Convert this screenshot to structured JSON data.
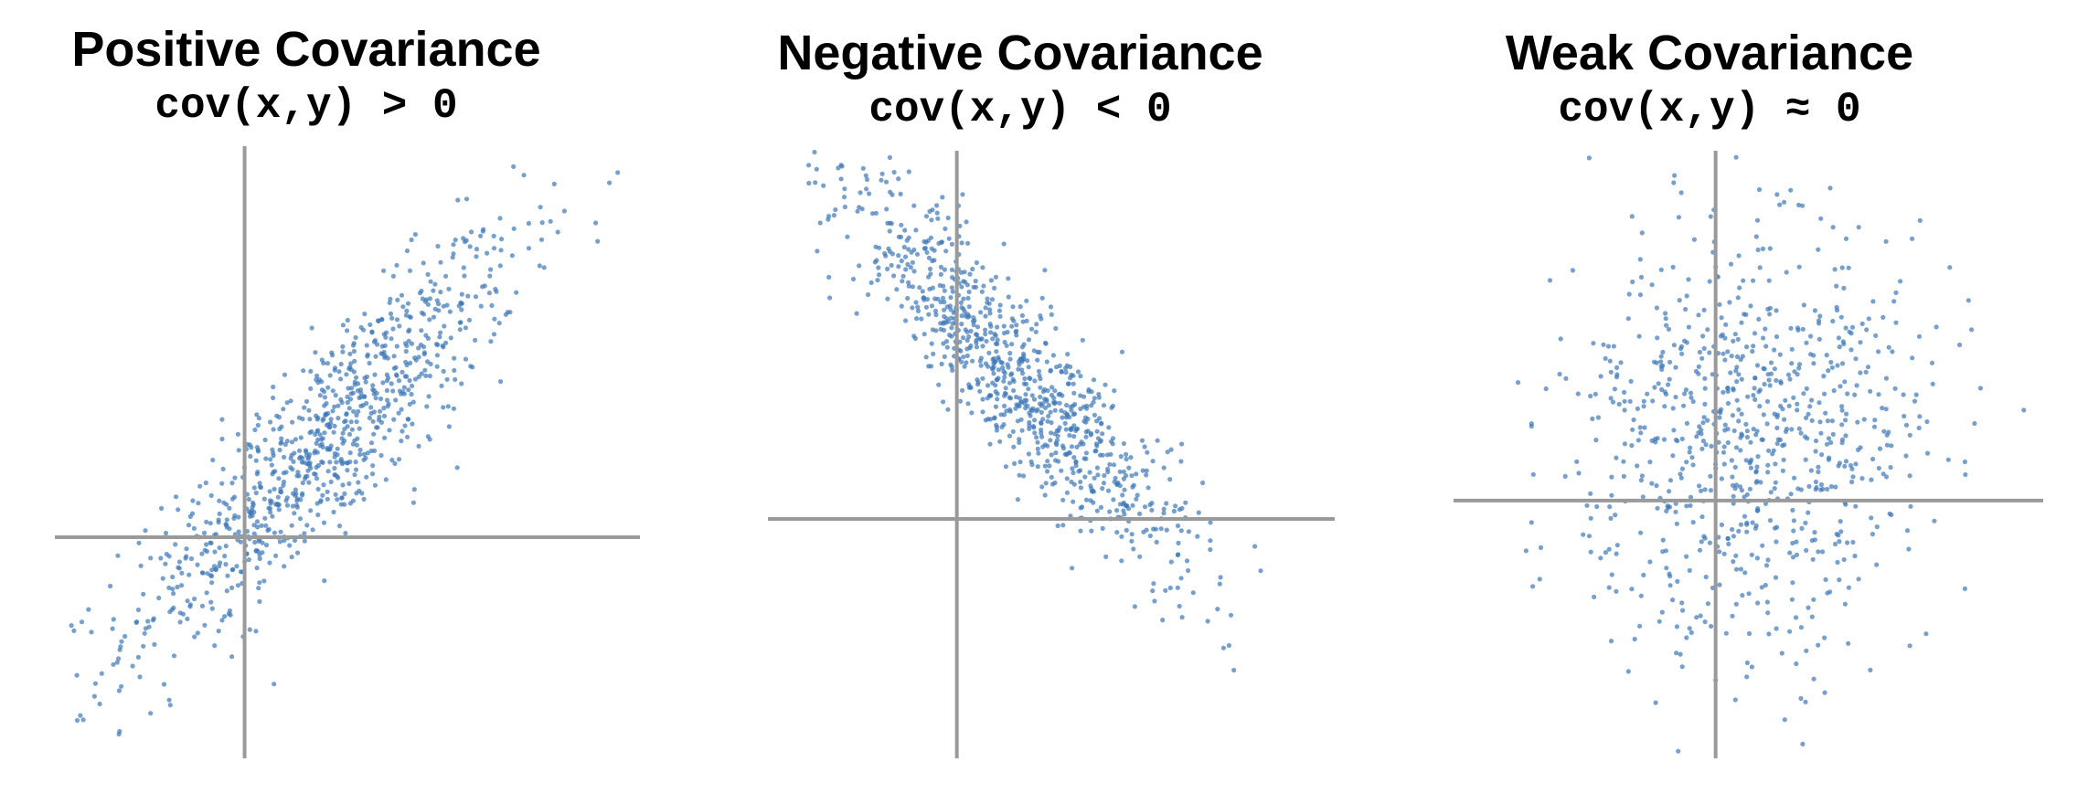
{
  "colors": {
    "points": "#3d78b8",
    "axes": "#9a9a9a",
    "text": "#000000"
  },
  "chart_data": [
    {
      "type": "scatter",
      "title": "Positive Covariance",
      "subtitle": "cov(x,y) > 0",
      "xlabel": "",
      "ylabel": "",
      "xlim": [
        -1.2,
        2.5
      ],
      "ylim": [
        -1.3,
        2.3
      ],
      "grid": false,
      "axes_crossing": [
        0,
        0
      ],
      "correlation": 0.88,
      "n_points": 900,
      "x_mean": 0.5,
      "x_std": 0.62,
      "y_mean": 0.55,
      "y_std": 0.62
    },
    {
      "type": "scatter",
      "title": "Negative Covariance",
      "subtitle": "cov(x,y) < 0",
      "xlabel": "",
      "ylabel": "",
      "xlim": [
        -1.0,
        2.0
      ],
      "ylim": [
        -1.3,
        2.0
      ],
      "grid": false,
      "axes_crossing": [
        0,
        0
      ],
      "correlation": -0.9,
      "n_points": 900,
      "x_mean": 0.35,
      "x_std": 0.48,
      "y_mean": 0.75,
      "y_std": 0.55
    },
    {
      "type": "scatter",
      "title": "Weak Covariance",
      "subtitle": "cov(x,y) ≈ 0",
      "xlabel": "",
      "ylabel": "",
      "xlim": [
        -1.6,
        2.0
      ],
      "ylim": [
        -1.4,
        1.9
      ],
      "grid": false,
      "axes_crossing": [
        0,
        0
      ],
      "correlation": 0.05,
      "n_points": 800,
      "x_mean": 0.2,
      "x_std": 0.55,
      "y_mean": 0.35,
      "y_std": 0.6
    }
  ]
}
